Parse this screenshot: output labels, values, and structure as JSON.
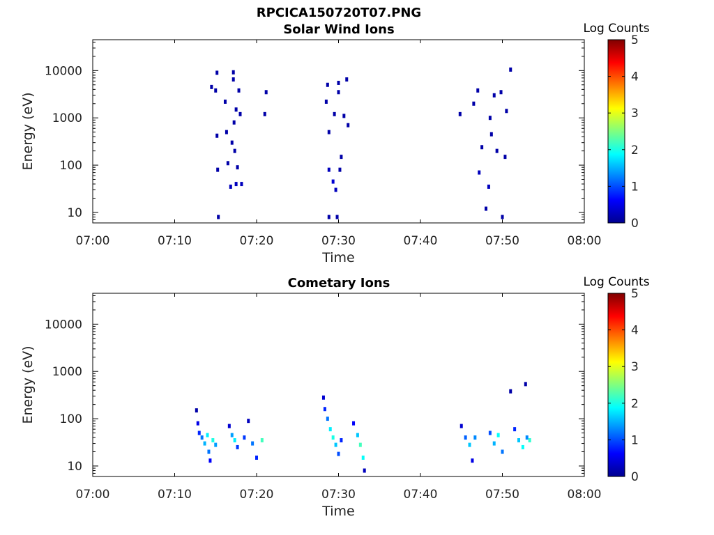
{
  "page_title": "RPCICA150720T07.PNG",
  "chart_data": [
    {
      "type": "heatmap",
      "title": "Solar Wind Ions",
      "xlabel": "Time",
      "ylabel": "Energy (eV)",
      "x_range": [
        "07:00",
        "08:00"
      ],
      "x_ticks": [
        "07:00",
        "07:10",
        "07:20",
        "07:30",
        "07:40",
        "07:50",
        "08:00"
      ],
      "y_scale": "log",
      "y_range": [
        6,
        45000
      ],
      "y_ticks": [
        10,
        100,
        1000,
        10000
      ],
      "colorbar": {
        "label": "Log Counts",
        "min": 0,
        "max": 5,
        "ticks": [
          0,
          1,
          2,
          3,
          4,
          5
        ],
        "colormap": "jet"
      },
      "points": [
        {
          "t": "07:14:30",
          "e": 4500,
          "v": 0.2
        },
        {
          "t": "07:15:10",
          "e": 9000,
          "v": 0.2
        },
        {
          "t": "07:15:00",
          "e": 3800,
          "v": 0.2
        },
        {
          "t": "07:15:10",
          "e": 420,
          "v": 0.2
        },
        {
          "t": "07:15:15",
          "e": 80,
          "v": 0.2
        },
        {
          "t": "07:15:20",
          "e": 8,
          "v": 0.2
        },
        {
          "t": "07:16:10",
          "e": 2200,
          "v": 0.2
        },
        {
          "t": "07:16:20",
          "e": 500,
          "v": 0.2
        },
        {
          "t": "07:16:30",
          "e": 110,
          "v": 0.2
        },
        {
          "t": "07:16:50",
          "e": 35,
          "v": 0.3
        },
        {
          "t": "07:17:00",
          "e": 300,
          "v": 0.2
        },
        {
          "t": "07:17:10",
          "e": 9200,
          "v": 0.2
        },
        {
          "t": "07:17:10",
          "e": 6500,
          "v": 0.2
        },
        {
          "t": "07:17:15",
          "e": 800,
          "v": 0.2
        },
        {
          "t": "07:17:20",
          "e": 200,
          "v": 0.2
        },
        {
          "t": "07:17:30",
          "e": 1500,
          "v": 0.2
        },
        {
          "t": "07:17:30",
          "e": 40,
          "v": 0.3
        },
        {
          "t": "07:17:40",
          "e": 90,
          "v": 0.2
        },
        {
          "t": "07:17:50",
          "e": 3800,
          "v": 0.2
        },
        {
          "t": "07:18:00",
          "e": 1200,
          "v": 0.2
        },
        {
          "t": "07:18:10",
          "e": 40,
          "v": 0.3
        },
        {
          "t": "07:21:00",
          "e": 1200,
          "v": 0.2
        },
        {
          "t": "07:21:10",
          "e": 3500,
          "v": 0.2
        },
        {
          "t": "07:28:30",
          "e": 2200,
          "v": 0.2
        },
        {
          "t": "07:28:40",
          "e": 5000,
          "v": 0.2
        },
        {
          "t": "07:28:50",
          "e": 500,
          "v": 0.2
        },
        {
          "t": "07:28:50",
          "e": 80,
          "v": 0.3
        },
        {
          "t": "07:28:50",
          "e": 8,
          "v": 0.2
        },
        {
          "t": "07:29:20",
          "e": 45,
          "v": 0.4
        },
        {
          "t": "07:29:30",
          "e": 1200,
          "v": 0.2
        },
        {
          "t": "07:29:40",
          "e": 30,
          "v": 0.3
        },
        {
          "t": "07:29:50",
          "e": 8,
          "v": 0.2
        },
        {
          "t": "07:30:00",
          "e": 5500,
          "v": 0.2
        },
        {
          "t": "07:30:00",
          "e": 3500,
          "v": 0.2
        },
        {
          "t": "07:30:10",
          "e": 80,
          "v": 0.2
        },
        {
          "t": "07:30:20",
          "e": 150,
          "v": 0.2
        },
        {
          "t": "07:30:40",
          "e": 1100,
          "v": 0.2
        },
        {
          "t": "07:31:00",
          "e": 6500,
          "v": 0.2
        },
        {
          "t": "07:31:10",
          "e": 700,
          "v": 0.2
        },
        {
          "t": "07:44:50",
          "e": 1200,
          "v": 0.2
        },
        {
          "t": "07:46:30",
          "e": 2000,
          "v": 0.2
        },
        {
          "t": "07:47:00",
          "e": 3800,
          "v": 0.2
        },
        {
          "t": "07:47:10",
          "e": 70,
          "v": 0.3
        },
        {
          "t": "07:47:30",
          "e": 240,
          "v": 0.2
        },
        {
          "t": "07:48:00",
          "e": 12,
          "v": 0.2
        },
        {
          "t": "07:48:20",
          "e": 35,
          "v": 0.3
        },
        {
          "t": "07:48:30",
          "e": 1000,
          "v": 0.2
        },
        {
          "t": "07:48:40",
          "e": 450,
          "v": 0.2
        },
        {
          "t": "07:49:00",
          "e": 3000,
          "v": 0.2
        },
        {
          "t": "07:49:20",
          "e": 200,
          "v": 0.2
        },
        {
          "t": "07:49:50",
          "e": 3500,
          "v": 0.2
        },
        {
          "t": "07:50:00",
          "e": 8,
          "v": 0.2
        },
        {
          "t": "07:50:20",
          "e": 150,
          "v": 0.2
        },
        {
          "t": "07:50:30",
          "e": 1400,
          "v": 0.2
        },
        {
          "t": "07:51:00",
          "e": 10500,
          "v": 0.2
        }
      ]
    },
    {
      "type": "heatmap",
      "title": "Cometary Ions",
      "xlabel": "Time",
      "ylabel": "Energy (eV)",
      "x_range": [
        "07:00",
        "08:00"
      ],
      "x_ticks": [
        "07:00",
        "07:10",
        "07:20",
        "07:30",
        "07:40",
        "07:50",
        "08:00"
      ],
      "y_scale": "log",
      "y_range": [
        6,
        45000
      ],
      "y_ticks": [
        10,
        100,
        1000,
        10000
      ],
      "colorbar": {
        "label": "Log Counts",
        "min": 0,
        "max": 5,
        "ticks": [
          0,
          1,
          2,
          3,
          4,
          5
        ],
        "colormap": "jet"
      },
      "points": [
        {
          "t": "07:12:40",
          "e": 150,
          "v": 0.2
        },
        {
          "t": "07:12:50",
          "e": 80,
          "v": 0.5
        },
        {
          "t": "07:13:00",
          "e": 50,
          "v": 0.8
        },
        {
          "t": "07:13:20",
          "e": 40,
          "v": 1.2
        },
        {
          "t": "07:13:40",
          "e": 30,
          "v": 1.5
        },
        {
          "t": "07:14:00",
          "e": 45,
          "v": 1.8
        },
        {
          "t": "07:14:10",
          "e": 20,
          "v": 1.2
        },
        {
          "t": "07:14:20",
          "e": 13,
          "v": 0.6
        },
        {
          "t": "07:14:40",
          "e": 35,
          "v": 2.0
        },
        {
          "t": "07:15:00",
          "e": 28,
          "v": 1.4
        },
        {
          "t": "07:16:40",
          "e": 70,
          "v": 0.4
        },
        {
          "t": "07:17:00",
          "e": 45,
          "v": 1.4
        },
        {
          "t": "07:17:20",
          "e": 35,
          "v": 1.8
        },
        {
          "t": "07:17:40",
          "e": 25,
          "v": 0.9
        },
        {
          "t": "07:18:30",
          "e": 40,
          "v": 0.9
        },
        {
          "t": "07:19:00",
          "e": 90,
          "v": 0.3
        },
        {
          "t": "07:19:30",
          "e": 30,
          "v": 1.2
        },
        {
          "t": "07:20:00",
          "e": 15,
          "v": 0.8
        },
        {
          "t": "07:20:40",
          "e": 35,
          "v": 2.2
        },
        {
          "t": "07:28:10",
          "e": 280,
          "v": 0.4
        },
        {
          "t": "07:28:20",
          "e": 160,
          "v": 0.8
        },
        {
          "t": "07:28:40",
          "e": 100,
          "v": 1.2
        },
        {
          "t": "07:29:00",
          "e": 60,
          "v": 1.8
        },
        {
          "t": "07:29:20",
          "e": 40,
          "v": 2.0
        },
        {
          "t": "07:29:40",
          "e": 28,
          "v": 1.6
        },
        {
          "t": "07:30:00",
          "e": 18,
          "v": 1.0
        },
        {
          "t": "07:30:20",
          "e": 35,
          "v": 0.8
        },
        {
          "t": "07:31:50",
          "e": 80,
          "v": 0.6
        },
        {
          "t": "07:32:20",
          "e": 45,
          "v": 1.6
        },
        {
          "t": "07:32:40",
          "e": 28,
          "v": 2.2
        },
        {
          "t": "07:33:00",
          "e": 15,
          "v": 1.9
        },
        {
          "t": "07:33:10",
          "e": 8,
          "v": 0.3
        },
        {
          "t": "07:45:00",
          "e": 70,
          "v": 0.4
        },
        {
          "t": "07:45:30",
          "e": 40,
          "v": 1.1
        },
        {
          "t": "07:46:00",
          "e": 28,
          "v": 1.6
        },
        {
          "t": "07:46:20",
          "e": 13,
          "v": 0.5
        },
        {
          "t": "07:46:40",
          "e": 40,
          "v": 1.3
        },
        {
          "t": "07:48:30",
          "e": 50,
          "v": 1.0
        },
        {
          "t": "07:49:00",
          "e": 30,
          "v": 1.5
        },
        {
          "t": "07:49:30",
          "e": 45,
          "v": 1.9
        },
        {
          "t": "07:50:00",
          "e": 20,
          "v": 1.2
        },
        {
          "t": "07:51:00",
          "e": 380,
          "v": 0.2
        },
        {
          "t": "07:51:30",
          "e": 60,
          "v": 0.8
        },
        {
          "t": "07:52:00",
          "e": 35,
          "v": 1.6
        },
        {
          "t": "07:52:30",
          "e": 25,
          "v": 1.9
        },
        {
          "t": "07:52:50",
          "e": 540,
          "v": 0.2
        },
        {
          "t": "07:53:00",
          "e": 40,
          "v": 1.3
        },
        {
          "t": "07:53:20",
          "e": 35,
          "v": 2.1
        }
      ]
    }
  ]
}
